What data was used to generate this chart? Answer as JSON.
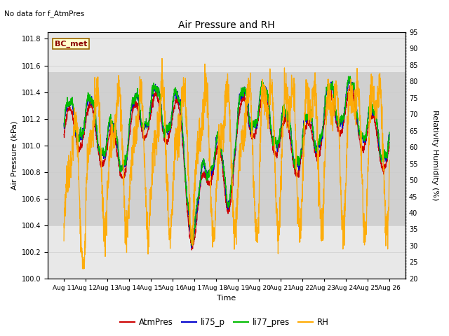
{
  "title": "Air Pressure and RH",
  "subtitle": "No data for f_AtmPres",
  "xlabel": "Time",
  "ylabel_left": "Air Pressure (kPa)",
  "ylabel_right": "Relativity Humidity (%)",
  "ylim_left": [
    100.0,
    101.85
  ],
  "ylim_right": [
    20,
    95
  ],
  "yticks_left": [
    100.0,
    100.2,
    100.4,
    100.6,
    100.8,
    101.0,
    101.2,
    101.4,
    101.6,
    101.8
  ],
  "yticks_right": [
    20,
    25,
    30,
    35,
    40,
    45,
    50,
    55,
    60,
    65,
    70,
    75,
    80,
    85,
    90,
    95
  ],
  "xtick_labels": [
    "Aug 11",
    "Aug 12",
    "Aug 13",
    "Aug 14",
    "Aug 15",
    "Aug 16",
    "Aug 17",
    "Aug 18",
    "Aug 19",
    "Aug 20",
    "Aug 21",
    "Aug 22",
    "Aug 23",
    "Aug 24",
    "Aug 25",
    "Aug 26"
  ],
  "annotation_label": "BC_met",
  "bg_band_ylim": [
    100.4,
    101.55
  ],
  "legend_entries": [
    {
      "label": "AtmPres",
      "color": "#cc0000"
    },
    {
      "label": "li75_p",
      "color": "#0000cc"
    },
    {
      "label": "li77_pres",
      "color": "#00bb00"
    },
    {
      "label": "RH",
      "color": "#ffaa00"
    }
  ],
  "grid_color": "#cccccc",
  "plot_bg_color": "#e8e8e8",
  "band_color": "#d0d0d0"
}
